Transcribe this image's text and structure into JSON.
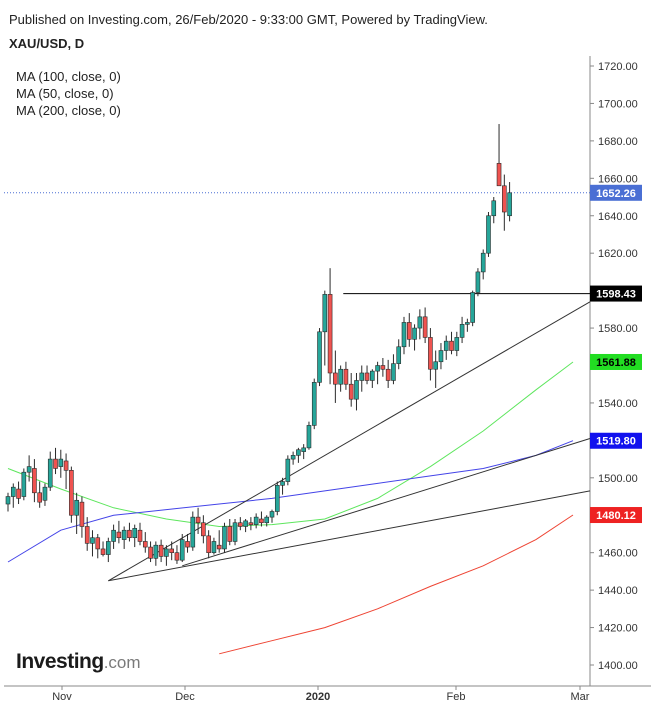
{
  "header": {
    "published": "Published on Investing.com, 26/Feb/2020 - 9:33:00 GMT, Powered by TradingView.",
    "symbol": "XAU/USD, D"
  },
  "legend": {
    "items": [
      "MA (100, close, 0)",
      "MA (50, close, 0)",
      "MA (200, close, 0)"
    ]
  },
  "logo": {
    "brand": "Investing",
    "suffix": ".com"
  },
  "colors": {
    "up": "#26a69a",
    "down": "#ef5350",
    "ma50": "#5ee65e",
    "ma100": "#4444e8",
    "ma200": "#ee4433",
    "trendline": "#333333",
    "last_price": "#4a6fd4"
  },
  "chart_data": {
    "type": "candlestick",
    "title": "XAU/USD, D",
    "y_axis": {
      "position": "right",
      "ylim": [
        1390,
        1725
      ],
      "ticks": [
        1400,
        1420,
        1440,
        1460,
        1480,
        1500,
        1520,
        1540,
        1560,
        1580,
        1600,
        1620,
        1640,
        1660,
        1680,
        1700,
        1720
      ]
    },
    "x_axis": {
      "ticks": [
        "Nov",
        "Dec",
        "2020",
        "Feb",
        "Mar"
      ]
    },
    "price_labels": [
      {
        "value": 1652.26,
        "label": "1652.26",
        "color": "#4a6fd4",
        "text_color": "#ffffff"
      },
      {
        "value": 1598.43,
        "label": "1598.43",
        "color": "#000000",
        "text_color": "#ffffff"
      },
      {
        "value": 1561.88,
        "label": "1561.88",
        "color": "#22dd22",
        "text_color": "#000000"
      },
      {
        "value": 1519.8,
        "label": "1519.80",
        "color": "#1111ee",
        "text_color": "#ffffff"
      },
      {
        "value": 1480.12,
        "label": "1480.12",
        "color": "#ee2222",
        "text_color": "#ffffff"
      }
    ],
    "last_price": 1652.26,
    "resistance_level": 1598.43,
    "series": [
      {
        "name": "MA (50, close, 0)",
        "role": "ma50",
        "x": [
          0,
          10,
          20,
          30,
          40,
          50,
          60,
          70,
          80,
          90,
          100,
          107
        ],
        "values": [
          1505,
          1494,
          1484,
          1478,
          1474,
          1475,
          1478,
          1489,
          1506,
          1525,
          1547,
          1561.88
        ]
      },
      {
        "name": "MA (100, close, 0)",
        "role": "ma100",
        "x": [
          0,
          10,
          20,
          30,
          40,
          50,
          60,
          70,
          80,
          90,
          100,
          107
        ],
        "values": [
          1455,
          1472,
          1480,
          1483,
          1486,
          1489,
          1493,
          1497,
          1501,
          1505,
          1512,
          1519.8
        ]
      },
      {
        "name": "MA (200, close, 0)",
        "role": "ma200",
        "x": [
          40,
          50,
          60,
          70,
          80,
          90,
          100,
          107
        ],
        "values": [
          1406,
          1413,
          1420,
          1430,
          1442,
          1453,
          1467,
          1480.12
        ]
      }
    ],
    "trendlines": [
      {
        "x": [
          19,
          112
        ],
        "y": [
          1445,
          1594
        ]
      },
      {
        "x": [
          19,
          112
        ],
        "y": [
          1445,
          1493
        ]
      },
      {
        "x": [
          33,
          112
        ],
        "y": [
          1453,
          1521
        ]
      },
      {
        "x": [
          63.5,
          112
        ],
        "y": [
          1598.43,
          1598.43
        ]
      }
    ],
    "candles": [
      {
        "o": 1486,
        "h": 1492,
        "l": 1482,
        "c": 1490
      },
      {
        "o": 1490,
        "h": 1497,
        "l": 1484,
        "c": 1495
      },
      {
        "o": 1494,
        "h": 1498,
        "l": 1486,
        "c": 1489
      },
      {
        "o": 1490,
        "h": 1505,
        "l": 1488,
        "c": 1503
      },
      {
        "o": 1503,
        "h": 1512,
        "l": 1498,
        "c": 1506
      },
      {
        "o": 1505,
        "h": 1510,
        "l": 1487,
        "c": 1492
      },
      {
        "o": 1492,
        "h": 1498,
        "l": 1484,
        "c": 1487
      },
      {
        "o": 1488,
        "h": 1497,
        "l": 1485,
        "c": 1495
      },
      {
        "o": 1495,
        "h": 1514,
        "l": 1493,
        "c": 1510
      },
      {
        "o": 1510,
        "h": 1516,
        "l": 1502,
        "c": 1505
      },
      {
        "o": 1506,
        "h": 1515,
        "l": 1500,
        "c": 1510
      },
      {
        "o": 1509,
        "h": 1513,
        "l": 1494,
        "c": 1504
      },
      {
        "o": 1504,
        "h": 1506,
        "l": 1476,
        "c": 1480
      },
      {
        "o": 1480,
        "h": 1492,
        "l": 1470,
        "c": 1488
      },
      {
        "o": 1487,
        "h": 1490,
        "l": 1468,
        "c": 1474
      },
      {
        "o": 1474,
        "h": 1479,
        "l": 1461,
        "c": 1465
      },
      {
        "o": 1465,
        "h": 1472,
        "l": 1458,
        "c": 1468
      },
      {
        "o": 1468,
        "h": 1470,
        "l": 1457,
        "c": 1462
      },
      {
        "o": 1462,
        "h": 1466,
        "l": 1458,
        "c": 1459
      },
      {
        "o": 1459,
        "h": 1468,
        "l": 1455,
        "c": 1466
      },
      {
        "o": 1466,
        "h": 1475,
        "l": 1462,
        "c": 1472
      },
      {
        "o": 1471,
        "h": 1477,
        "l": 1465,
        "c": 1468
      },
      {
        "o": 1467,
        "h": 1474,
        "l": 1462,
        "c": 1472
      },
      {
        "o": 1472,
        "h": 1476,
        "l": 1466,
        "c": 1468
      },
      {
        "o": 1468,
        "h": 1475,
        "l": 1463,
        "c": 1473
      },
      {
        "o": 1472,
        "h": 1476,
        "l": 1464,
        "c": 1466
      },
      {
        "o": 1466,
        "h": 1471,
        "l": 1460,
        "c": 1463
      },
      {
        "o": 1463,
        "h": 1466,
        "l": 1455,
        "c": 1457
      },
      {
        "o": 1457,
        "h": 1466,
        "l": 1453,
        "c": 1464
      },
      {
        "o": 1464,
        "h": 1467,
        "l": 1455,
        "c": 1458
      },
      {
        "o": 1458,
        "h": 1464,
        "l": 1453,
        "c": 1462
      },
      {
        "o": 1462,
        "h": 1466,
        "l": 1456,
        "c": 1460
      },
      {
        "o": 1460,
        "h": 1464,
        "l": 1454,
        "c": 1456
      },
      {
        "o": 1456,
        "h": 1470,
        "l": 1455,
        "c": 1467
      },
      {
        "o": 1466,
        "h": 1470,
        "l": 1460,
        "c": 1463
      },
      {
        "o": 1463,
        "h": 1482,
        "l": 1461,
        "c": 1479
      },
      {
        "o": 1479,
        "h": 1484,
        "l": 1470,
        "c": 1476
      },
      {
        "o": 1476,
        "h": 1480,
        "l": 1465,
        "c": 1469
      },
      {
        "o": 1469,
        "h": 1472,
        "l": 1457,
        "c": 1460
      },
      {
        "o": 1460,
        "h": 1468,
        "l": 1459,
        "c": 1466
      },
      {
        "o": 1464,
        "h": 1472,
        "l": 1460,
        "c": 1462
      },
      {
        "o": 1462,
        "h": 1476,
        "l": 1460,
        "c": 1474
      },
      {
        "o": 1474,
        "h": 1478,
        "l": 1464,
        "c": 1466
      },
      {
        "o": 1466,
        "h": 1478,
        "l": 1464,
        "c": 1476
      },
      {
        "o": 1476,
        "h": 1479,
        "l": 1472,
        "c": 1474
      },
      {
        "o": 1474,
        "h": 1478,
        "l": 1471,
        "c": 1477
      },
      {
        "o": 1476,
        "h": 1479,
        "l": 1472,
        "c": 1475
      },
      {
        "o": 1475,
        "h": 1481,
        "l": 1473,
        "c": 1479
      },
      {
        "o": 1478,
        "h": 1482,
        "l": 1474,
        "c": 1476
      },
      {
        "o": 1476,
        "h": 1480,
        "l": 1474,
        "c": 1479
      },
      {
        "o": 1479,
        "h": 1483,
        "l": 1476,
        "c": 1482
      },
      {
        "o": 1482,
        "h": 1498,
        "l": 1480,
        "c": 1496
      },
      {
        "o": 1496,
        "h": 1500,
        "l": 1491,
        "c": 1498
      },
      {
        "o": 1498,
        "h": 1512,
        "l": 1496,
        "c": 1510
      },
      {
        "o": 1510,
        "h": 1514,
        "l": 1507,
        "c": 1512
      },
      {
        "o": 1512,
        "h": 1516,
        "l": 1508,
        "c": 1515
      },
      {
        "o": 1514,
        "h": 1518,
        "l": 1510,
        "c": 1516
      },
      {
        "o": 1516,
        "h": 1530,
        "l": 1515,
        "c": 1528
      },
      {
        "o": 1528,
        "h": 1553,
        "l": 1526,
        "c": 1551
      },
      {
        "o": 1551,
        "h": 1580,
        "l": 1549,
        "c": 1578
      },
      {
        "o": 1578,
        "h": 1600,
        "l": 1560,
        "c": 1598
      },
      {
        "o": 1598,
        "h": 1612,
        "l": 1550,
        "c": 1556
      },
      {
        "o": 1556,
        "h": 1568,
        "l": 1540,
        "c": 1550
      },
      {
        "o": 1550,
        "h": 1560,
        "l": 1546,
        "c": 1558
      },
      {
        "o": 1558,
        "h": 1562,
        "l": 1547,
        "c": 1550
      },
      {
        "o": 1550,
        "h": 1556,
        "l": 1538,
        "c": 1542
      },
      {
        "o": 1542,
        "h": 1556,
        "l": 1536,
        "c": 1552
      },
      {
        "o": 1552,
        "h": 1560,
        "l": 1546,
        "c": 1556
      },
      {
        "o": 1556,
        "h": 1560,
        "l": 1550,
        "c": 1552
      },
      {
        "o": 1552,
        "h": 1558,
        "l": 1548,
        "c": 1557
      },
      {
        "o": 1557,
        "h": 1562,
        "l": 1550,
        "c": 1560
      },
      {
        "o": 1560,
        "h": 1564,
        "l": 1554,
        "c": 1558
      },
      {
        "o": 1558,
        "h": 1563,
        "l": 1548,
        "c": 1552
      },
      {
        "o": 1552,
        "h": 1566,
        "l": 1550,
        "c": 1561
      },
      {
        "o": 1561,
        "h": 1574,
        "l": 1558,
        "c": 1570
      },
      {
        "o": 1570,
        "h": 1586,
        "l": 1566,
        "c": 1583
      },
      {
        "o": 1583,
        "h": 1588,
        "l": 1570,
        "c": 1574
      },
      {
        "o": 1574,
        "h": 1582,
        "l": 1568,
        "c": 1580
      },
      {
        "o": 1580,
        "h": 1590,
        "l": 1574,
        "c": 1586
      },
      {
        "o": 1586,
        "h": 1591,
        "l": 1572,
        "c": 1575
      },
      {
        "o": 1575,
        "h": 1580,
        "l": 1552,
        "c": 1558
      },
      {
        "o": 1558,
        "h": 1568,
        "l": 1548,
        "c": 1562
      },
      {
        "o": 1562,
        "h": 1572,
        "l": 1558,
        "c": 1568
      },
      {
        "o": 1568,
        "h": 1576,
        "l": 1563,
        "c": 1573
      },
      {
        "o": 1573,
        "h": 1578,
        "l": 1566,
        "c": 1568
      },
      {
        "o": 1568,
        "h": 1578,
        "l": 1565,
        "c": 1575
      },
      {
        "o": 1575,
        "h": 1586,
        "l": 1572,
        "c": 1582
      },
      {
        "o": 1582,
        "h": 1585,
        "l": 1578,
        "c": 1583
      },
      {
        "o": 1583,
        "h": 1600,
        "l": 1581,
        "c": 1599
      },
      {
        "o": 1599,
        "h": 1612,
        "l": 1597,
        "c": 1610
      },
      {
        "o": 1610,
        "h": 1622,
        "l": 1606,
        "c": 1620
      },
      {
        "o": 1620,
        "h": 1642,
        "l": 1618,
        "c": 1640
      },
      {
        "o": 1640,
        "h": 1650,
        "l": 1636,
        "c": 1648
      },
      {
        "o": 1668,
        "h": 1689,
        "l": 1658,
        "c": 1656
      },
      {
        "o": 1656,
        "h": 1662,
        "l": 1632,
        "c": 1642
      },
      {
        "o": 1640,
        "h": 1658,
        "l": 1637,
        "c": 1652.26
      }
    ]
  }
}
